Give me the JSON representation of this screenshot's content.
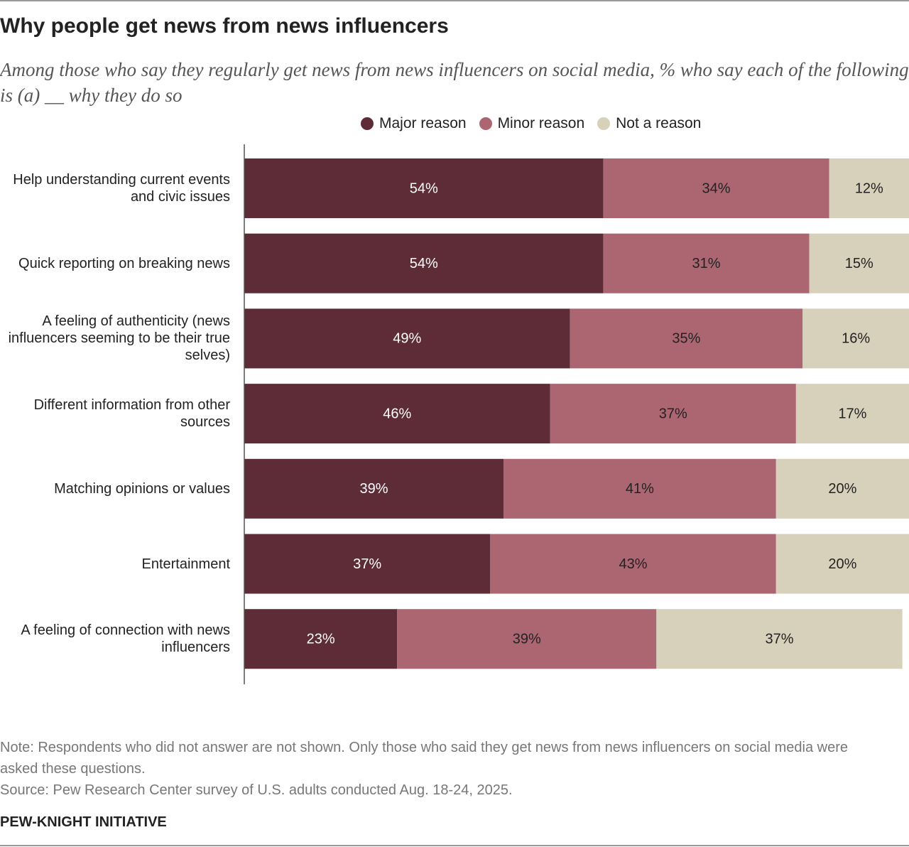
{
  "chart_data": {
    "type": "stacked-bar",
    "title": "Why people get news from news influencers",
    "subtitle": "Among those who say they regularly get news from news influencers on social media, % who say each of the following is (a) __ why they do so",
    "categories": [
      "Help understanding current events and civic issues",
      "Quick reporting on breaking news",
      "A feeling of authenticity (news influencers seeming to be their true selves)",
      "Different information from other sources",
      "Matching opinions or values",
      "Entertainment",
      "A feeling of connection with news influencers"
    ],
    "series": [
      {
        "name": "Major reason",
        "color": "#5e2c37",
        "values": [
          54,
          54,
          49,
          46,
          39,
          37,
          23
        ],
        "value_labels": [
          "54%",
          "54%",
          "49%",
          "46%",
          "39%",
          "37%",
          "23%"
        ]
      },
      {
        "name": "Minor reason",
        "color": "#ab6672",
        "values": [
          34,
          31,
          35,
          37,
          41,
          43,
          39
        ],
        "value_labels": [
          "34%",
          "31%",
          "35%",
          "37%",
          "41%",
          "43%",
          "39%"
        ]
      },
      {
        "name": "Not a reason",
        "color": "#d7d1bb",
        "values": [
          12,
          15,
          16,
          17,
          20,
          20,
          37
        ],
        "value_labels": [
          "12%",
          "15%",
          "16%",
          "17%",
          "20%",
          "20%",
          "37%"
        ]
      }
    ],
    "xlim": [
      0,
      100
    ],
    "note": "Note: Respondents who did not answer are not shown. Only those who said they get news from news influencers on social media were asked these questions.",
    "source": "Source: Pew Research Center survey of U.S. adults conducted Aug. 18-24, 2025.",
    "credit": "PEW-KNIGHT INITIATIVE"
  }
}
